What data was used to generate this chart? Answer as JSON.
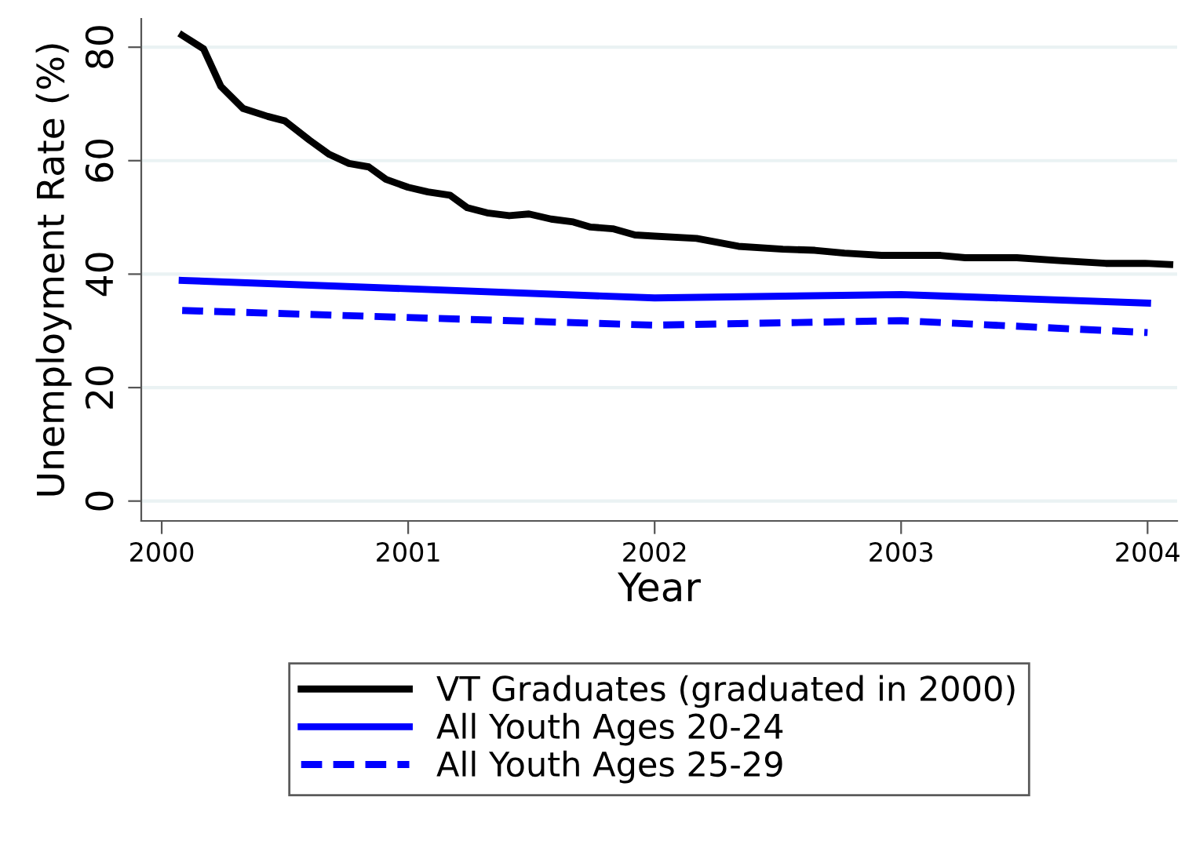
{
  "chart_data": {
    "type": "line",
    "xlabel": "Year",
    "ylabel": "Unemployment Rate (%)",
    "xlim": [
      1999.917,
      2004.12
    ],
    "ylim": [
      -3.5,
      85
    ],
    "xticks": [
      2000,
      2001,
      2002,
      2003,
      2004
    ],
    "yticks": [
      0,
      20,
      40,
      60,
      80
    ],
    "grid": "y",
    "legend": "bottom",
    "line_style": "solid",
    "marker": "none",
    "series": [
      {
        "name": "VT Graduates (graduated in 2000)",
        "color": "#000000",
        "x": [
          2000.083,
          2000.17,
          2000.24,
          2000.33,
          2000.43,
          2000.5,
          2000.6,
          2000.68,
          2000.76,
          2000.84,
          2000.91,
          2001.0,
          2001.08,
          2001.17,
          2001.24,
          2001.32,
          2001.41,
          2001.49,
          2001.58,
          2001.67,
          2001.74,
          2001.83,
          2001.92,
          2002.0,
          2002.17,
          2002.34,
          2002.52,
          2002.65,
          2002.77,
          2002.92,
          2003.16,
          2003.26,
          2003.47,
          2003.64,
          2003.83,
          2003.99,
          2004.09
        ],
        "values": [
          82.1,
          79.7,
          73.1,
          69.2,
          67.8,
          67.0,
          63.6,
          61.1,
          59.5,
          58.9,
          56.7,
          55.3,
          54.5,
          53.9,
          51.7,
          50.8,
          50.3,
          50.6,
          49.7,
          49.2,
          48.3,
          48.0,
          46.9,
          46.7,
          46.3,
          44.9,
          44.4,
          44.2,
          43.7,
          43.3,
          43.3,
          42.9,
          42.9,
          42.4,
          41.9,
          41.9,
          41.7
        ]
      },
      {
        "name": "All Youth Ages 20-24",
        "color": "#0000ff",
        "x": [
          2000.083,
          2002.0,
          2003.0,
          2004.0
        ],
        "values": [
          38.9,
          35.8,
          36.4,
          34.9
        ]
      },
      {
        "name": "All Youth Ages 25-29",
        "color": "#0000ff",
        "line_style": "dashed",
        "x": [
          2000.083,
          2002.0,
          2003.0,
          2004.0
        ],
        "values": [
          33.6,
          31.0,
          31.8,
          29.7
        ]
      }
    ]
  }
}
